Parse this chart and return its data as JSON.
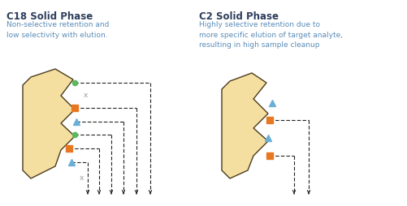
{
  "title_left": "C18 Solid Phase",
  "title_right": "C2 Solid Phase",
  "subtitle_left": "Non-selective retention and\nlow selectivity with elution.",
  "subtitle_right": "Highly selective retention due to\nmore specific elution of target analyte,\nresulting in high sample cleanup",
  "title_color": "#2e3f5c",
  "subtitle_color": "#5b8db8",
  "title_fontsize": 8.5,
  "subtitle_fontsize": 6.5,
  "shape_fill": "#f5dfa0",
  "shape_edge": "#4a3c1e",
  "marker_orange": "#e87722",
  "marker_green": "#5cb85c",
  "marker_blue": "#6aafd6",
  "arrow_color": "#222222",
  "x_color": "#999999",
  "lw": 0.8
}
